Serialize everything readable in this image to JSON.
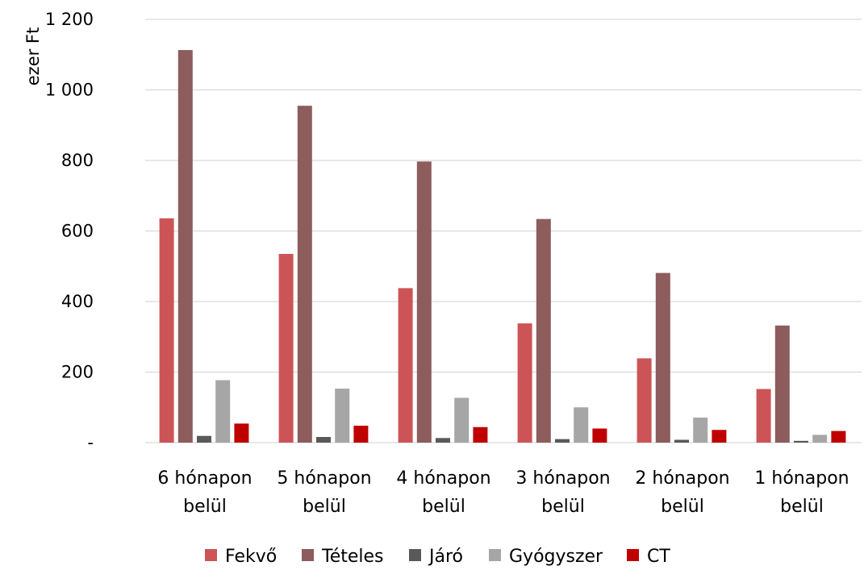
{
  "chart_data": {
    "type": "bar",
    "title": "",
    "xlabel": "",
    "ylabel": "ezer Ft",
    "ylim": [
      0,
      1200
    ],
    "yticks": [
      0,
      200,
      400,
      600,
      800,
      1000,
      1200
    ],
    "ytick_labels": [
      "-",
      "200",
      "400",
      "600",
      "800",
      "1 000",
      "1 200"
    ],
    "grid": true,
    "legend_position": "bottom",
    "categories": [
      [
        "6 hónapon",
        "belül"
      ],
      [
        "5 hónapon",
        "belül"
      ],
      [
        "4 hónapon",
        "belül"
      ],
      [
        "3 hónapon",
        "belül"
      ],
      [
        "2 hónapon",
        "belül"
      ],
      [
        "1 hónapon",
        "belül"
      ]
    ],
    "series": [
      {
        "name": "Fekvő",
        "color": "#cd5456",
        "values": [
          636,
          535,
          438,
          338,
          239,
          152
        ]
      },
      {
        "name": "Tételes",
        "color": "#8d5c5c",
        "values": [
          1113,
          955,
          797,
          634,
          481,
          332
        ]
      },
      {
        "name": "Járó",
        "color": "#595959",
        "values": [
          19,
          16,
          13,
          10,
          8,
          5
        ]
      },
      {
        "name": "Gyógyszer",
        "color": "#a6a6a6",
        "values": [
          177,
          153,
          127,
          100,
          71,
          22
        ]
      },
      {
        "name": "CT",
        "color": "#c00000",
        "values": [
          54,
          48,
          44,
          40,
          36,
          33
        ]
      }
    ]
  }
}
